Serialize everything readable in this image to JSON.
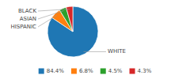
{
  "chart_data": {
    "type": "pie",
    "categories": [
      "WHITE",
      "HISPANIC",
      "ASIAN",
      "BLACK"
    ],
    "values": [
      84.4,
      6.8,
      4.5,
      4.3
    ],
    "value_labels": [
      "84.4%",
      "6.8%",
      "4.5%",
      "4.3%"
    ],
    "legend": "bottom"
  }
}
